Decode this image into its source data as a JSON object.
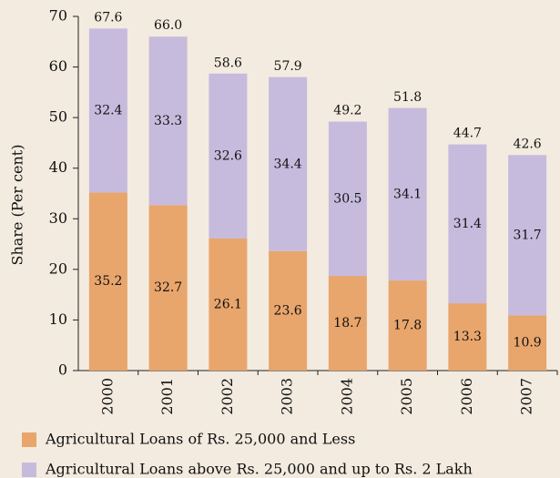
{
  "chart_data": {
    "type": "stacked_bar",
    "y_label": "Share (Per cent)",
    "categories": [
      "2000",
      "2001",
      "2002",
      "2003",
      "2004",
      "2005",
      "2006",
      "2007"
    ],
    "series": [
      {
        "name": "Agricultural Loans of Rs. 25,000 and Less",
        "color": "#e8a56c",
        "values": [
          35.2,
          32.7,
          26.1,
          23.6,
          18.7,
          17.8,
          13.3,
          10.9
        ]
      },
      {
        "name": "Agricultural Loans above Rs. 25,000 and up to Rs. 2 Lakh",
        "color": "#c6bbdd",
        "values": [
          32.4,
          33.3,
          32.6,
          34.4,
          30.5,
          34.1,
          31.4,
          31.7
        ]
      }
    ],
    "totals": {
      "values": [
        67.6,
        66.0,
        58.6,
        57.9,
        49.2,
        51.8,
        44.7,
        42.6
      ],
      "value_labels": [
        "67.6",
        "66.0",
        "58.6",
        "57.9",
        "49.2",
        "51.8",
        "44.7",
        "42.6"
      ]
    },
    "ylim": [
      0,
      70
    ],
    "yticks": [
      0,
      10,
      20,
      30,
      40,
      50,
      60,
      70
    ]
  }
}
